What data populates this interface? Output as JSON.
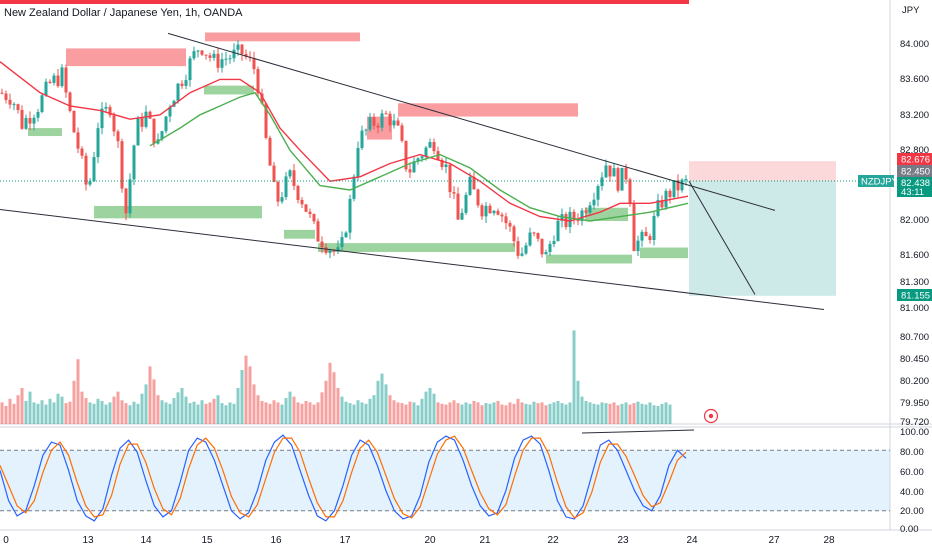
{
  "header": {
    "title": "New Zealand Dollar / Japanese Yen, 1h, OANDA",
    "currency": "JPY"
  },
  "price_axis": {
    "ticks": [
      "84.000",
      "83.600",
      "83.200",
      "82.800",
      "82.000",
      "81.600",
      "81.300",
      "81.000"
    ]
  },
  "volume_axis": {
    "ticks": [
      "80.700",
      "80.450",
      "80.200",
      "79.950",
      "79.720"
    ]
  },
  "stoch_axis": {
    "ticks": [
      "100.00",
      "80.00",
      "60.00",
      "40.00",
      "20.00",
      "0.00"
    ]
  },
  "price_tags": {
    "target_top": "82.676",
    "entry": "82.450",
    "symbol": "NZDJPY",
    "last": "82.438",
    "countdown": "43:11",
    "target_bottom": "81.155"
  },
  "colors": {
    "up": "#26a69a",
    "down": "#ef5350",
    "ma_red": "#f23645",
    "ma_green": "#4caf50",
    "stoch_k": "#2962ff",
    "stoch_d": "#ff6d00",
    "supply_zone": "#f77c80",
    "demand_zone": "#4caf50",
    "target_fill": "#b2dfdb",
    "symbol_tag": "#26a69a",
    "last_tag": "#089981"
  },
  "chart_data": [
    {
      "type": "candlestick",
      "symbol": "NZDJPY",
      "timeframe": "1h",
      "x_ticks": [
        "0",
        "13",
        "14",
        "15",
        "16",
        "17",
        "20",
        "21",
        "22",
        "23",
        "24",
        "27",
        "28"
      ],
      "y_range": [
        80.95,
        84.3
      ],
      "close_path": [
        [
          0,
          83.45
        ],
        [
          12,
          83.4
        ],
        [
          22,
          83.1
        ],
        [
          38,
          83.3
        ],
        [
          50,
          83.55
        ],
        [
          62,
          83.65
        ],
        [
          72,
          83.1
        ],
        [
          80,
          82.75
        ],
        [
          88,
          82.3
        ],
        [
          98,
          83.1
        ],
        [
          110,
          83.3
        ],
        [
          118,
          82.85
        ],
        [
          126,
          82.1
        ],
        [
          136,
          83.05
        ],
        [
          146,
          83.2
        ],
        [
          158,
          82.85
        ],
        [
          170,
          83.35
        ],
        [
          186,
          83.7
        ],
        [
          200,
          84.0
        ],
        [
          214,
          83.8
        ],
        [
          228,
          83.85
        ],
        [
          242,
          83.9
        ],
        [
          256,
          83.7
        ],
        [
          266,
          82.9
        ],
        [
          276,
          82.2
        ],
        [
          290,
          82.5
        ],
        [
          304,
          82.2
        ],
        [
          316,
          81.85
        ],
        [
          330,
          81.7
        ],
        [
          340,
          81.6
        ],
        [
          350,
          82.2
        ],
        [
          358,
          82.9
        ],
        [
          372,
          83.1
        ],
        [
          388,
          83.2
        ],
        [
          398,
          83.0
        ],
        [
          408,
          82.55
        ],
        [
          420,
          82.75
        ],
        [
          434,
          82.9
        ],
        [
          446,
          82.6
        ],
        [
          458,
          82.0
        ],
        [
          470,
          82.4
        ],
        [
          482,
          82.15
        ],
        [
          496,
          82.2
        ],
        [
          510,
          81.9
        ],
        [
          520,
          81.6
        ],
        [
          532,
          81.85
        ],
        [
          546,
          81.6
        ],
        [
          556,
          81.95
        ],
        [
          568,
          82.0
        ],
        [
          582,
          82.1
        ],
        [
          594,
          82.35
        ],
        [
          606,
          82.65
        ],
        [
          618,
          82.45
        ],
        [
          628,
          82.55
        ],
        [
          634,
          81.75
        ],
        [
          648,
          81.8
        ],
        [
          660,
          82.2
        ],
        [
          672,
          82.35
        ],
        [
          680,
          82.4
        ],
        [
          688,
          82.438
        ]
      ],
      "moving_averages": [
        {
          "color": "red",
          "points": [
            [
              0,
              83.8
            ],
            [
              40,
              83.45
            ],
            [
              70,
              83.3
            ],
            [
              100,
              83.25
            ],
            [
              130,
              83.15
            ],
            [
              160,
              83.2
            ],
            [
              190,
              83.45
            ],
            [
              220,
              83.6
            ],
            [
              240,
              83.6
            ],
            [
              260,
              83.45
            ],
            [
              280,
              83.05
            ],
            [
              300,
              82.8
            ],
            [
              330,
              82.45
            ],
            [
              360,
              82.5
            ],
            [
              390,
              82.65
            ],
            [
              420,
              82.75
            ],
            [
              450,
              82.65
            ],
            [
              480,
              82.45
            ],
            [
              510,
              82.2
            ],
            [
              540,
              82.05
            ],
            [
              570,
              82.0
            ],
            [
              600,
              82.1
            ],
            [
              620,
              82.2
            ],
            [
              650,
              82.2
            ],
            [
              688,
              82.28
            ]
          ]
        },
        {
          "color": "green",
          "points": [
            [
              150,
              82.85
            ],
            [
              180,
              83.05
            ],
            [
              200,
              83.2
            ],
            [
              220,
              83.3
            ],
            [
              240,
              83.4
            ],
            [
              255,
              83.45
            ],
            [
              270,
              83.2
            ],
            [
              290,
              82.8
            ],
            [
              320,
              82.4
            ],
            [
              350,
              82.35
            ],
            [
              380,
              82.5
            ],
            [
              410,
              82.65
            ],
            [
              440,
              82.75
            ],
            [
              470,
              82.6
            ],
            [
              500,
              82.35
            ],
            [
              530,
              82.15
            ],
            [
              560,
              82.05
            ],
            [
              590,
              82.0
            ],
            [
              620,
              82.05
            ],
            [
              650,
              82.1
            ],
            [
              688,
              82.2
            ]
          ]
        }
      ],
      "trendlines": [
        {
          "name": "upper",
          "from": [
            168,
            84.12
          ],
          "to": [
            775,
            82.12
          ]
        },
        {
          "name": "lower",
          "from": [
            0,
            82.13
          ],
          "to": [
            824,
            81.0
          ]
        },
        {
          "name": "projection",
          "from": [
            689,
            82.45
          ],
          "to": [
            755,
            81.17
          ]
        }
      ],
      "zones": [
        {
          "kind": "supply",
          "x": [
            66,
            186
          ],
          "y": [
            83.75,
            83.95
          ]
        },
        {
          "kind": "supply",
          "x": [
            205,
            360
          ],
          "y": [
            84.03,
            84.13
          ]
        },
        {
          "kind": "supply",
          "x": [
            398,
            578
          ],
          "y": [
            83.18,
            83.33
          ]
        },
        {
          "kind": "supply",
          "x": [
            367,
            392
          ],
          "y": [
            82.92,
            83.18
          ]
        },
        {
          "kind": "demand",
          "x": [
            28,
            62
          ],
          "y": [
            82.96,
            83.05
          ]
        },
        {
          "kind": "demand",
          "x": [
            94,
            262
          ],
          "y": [
            82.03,
            82.17
          ]
        },
        {
          "kind": "demand",
          "x": [
            204,
            254
          ],
          "y": [
            83.43,
            83.53
          ]
        },
        {
          "kind": "demand",
          "x": [
            318,
            515
          ],
          "y": [
            81.65,
            81.75
          ]
        },
        {
          "kind": "demand",
          "x": [
            546,
            632
          ],
          "y": [
            81.52,
            81.62
          ]
        },
        {
          "kind": "demand",
          "x": [
            640,
            688
          ],
          "y": [
            81.58,
            81.7
          ]
        },
        {
          "kind": "demand",
          "x": [
            585,
            628
          ],
          "y": [
            82.0,
            82.15
          ]
        },
        {
          "kind": "demand",
          "x": [
            284,
            315
          ],
          "y": [
            81.8,
            81.9
          ]
        }
      ],
      "position": {
        "entry": 82.45,
        "target": 81.155,
        "stop": 82.676,
        "x": [
          689,
          836
        ]
      }
    },
    {
      "type": "bar",
      "name": "Volume",
      "color_by": "candle direction",
      "values": [
        0.3,
        0.25,
        0.35,
        0.28,
        0.4,
        0.5,
        0.32,
        0.45,
        0.3,
        0.28,
        0.33,
        0.27,
        0.35,
        0.3,
        0.42,
        0.38,
        0.29,
        0.31,
        0.6,
        0.9,
        0.45,
        0.36,
        0.3,
        0.28,
        0.35,
        0.32,
        0.27,
        0.3,
        0.38,
        0.45,
        0.33,
        0.29,
        0.26,
        0.31,
        0.28,
        0.42,
        0.55,
        0.8,
        0.62,
        0.4,
        0.33,
        0.3,
        0.28,
        0.36,
        0.44,
        0.5,
        0.38,
        0.29,
        0.31,
        0.27,
        0.33,
        0.28,
        0.3,
        0.35,
        0.4,
        0.29,
        0.26,
        0.3,
        0.28,
        0.5,
        0.75,
        0.95,
        0.8,
        0.55,
        0.4,
        0.32,
        0.3,
        0.28,
        0.33,
        0.3,
        0.27,
        0.36,
        0.45,
        0.38,
        0.3,
        0.28,
        0.32,
        0.3,
        0.27,
        0.3,
        0.44,
        0.6,
        0.85,
        0.72,
        0.5,
        0.38,
        0.31,
        0.29,
        0.27,
        0.33,
        0.3,
        0.28,
        0.35,
        0.4,
        0.6,
        0.7,
        0.55,
        0.4,
        0.33,
        0.3,
        0.29,
        0.27,
        0.31,
        0.3,
        0.26,
        0.35,
        0.45,
        0.5,
        0.42,
        0.3,
        0.28,
        0.27,
        0.3,
        0.33,
        0.29,
        0.27,
        0.3,
        0.28,
        0.32,
        0.3,
        0.26,
        0.29,
        0.28,
        0.3,
        0.32,
        0.27,
        0.26,
        0.3,
        0.28,
        0.35,
        0.3,
        0.28,
        0.27,
        0.31,
        0.29,
        0.3,
        0.26,
        0.28,
        0.3,
        0.32,
        0.29,
        0.27,
        0.3,
        1.3,
        0.6,
        0.38,
        0.32,
        0.3,
        0.28,
        0.27,
        0.3,
        0.29,
        0.28,
        0.3,
        0.26,
        0.28,
        0.3,
        0.27,
        0.29,
        0.31,
        0.28,
        0.27,
        0.3,
        0.26,
        0.25,
        0.28,
        0.3,
        0.27
      ]
    },
    {
      "type": "line",
      "name": "Stochastic",
      "y_range": [
        0,
        100
      ],
      "bands": [
        20,
        80
      ],
      "series": [
        {
          "color": "blue",
          "values": [
            60,
            30,
            15,
            20,
            45,
            75,
            88,
            85,
            60,
            30,
            15,
            10,
            22,
            55,
            82,
            90,
            78,
            50,
            25,
            14,
            20,
            48,
            80,
            92,
            88,
            70,
            45,
            20,
            12,
            18,
            40,
            70,
            88,
            95,
            85,
            60,
            35,
            15,
            10,
            20,
            45,
            75,
            90,
            85,
            65,
            40,
            20,
            12,
            15,
            35,
            68,
            88,
            94,
            90,
            70,
            45,
            25,
            15,
            18,
            40,
            72,
            90,
            94,
            86,
            60,
            30,
            14,
            12,
            25,
            55,
            85,
            90,
            80,
            60,
            40,
            25,
            20,
            35,
            65,
            80,
            72
          ]
        },
        {
          "color": "orange",
          "values": [
            65,
            45,
            25,
            18,
            30,
            58,
            80,
            88,
            75,
            48,
            25,
            14,
            16,
            35,
            66,
            86,
            86,
            68,
            42,
            22,
            16,
            32,
            62,
            85,
            92,
            82,
            60,
            34,
            18,
            14,
            26,
            52,
            78,
            92,
            92,
            78,
            52,
            28,
            14,
            14,
            30,
            58,
            82,
            90,
            78,
            55,
            32,
            17,
            13,
            24,
            50,
            76,
            90,
            94,
            82,
            60,
            38,
            22,
            16,
            26,
            54,
            80,
            92,
            92,
            76,
            48,
            24,
            13,
            18,
            38,
            68,
            86,
            86,
            74,
            55,
            35,
            24,
            28,
            48,
            70,
            78
          ]
        }
      ]
    }
  ]
}
